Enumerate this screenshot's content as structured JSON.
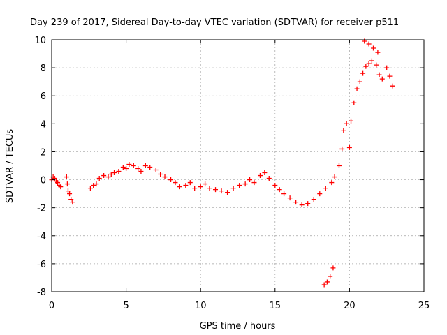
{
  "chart_data": {
    "type": "scatter",
    "title": "Day 239 of 2017, Sidereal Day-to-day VTEC variation (SDTVAR) for receiver p511",
    "xlabel": "GPS time / hours",
    "ylabel": "SDTVAR / TECUs",
    "xlim": [
      0,
      25
    ],
    "ylim": [
      -8,
      10
    ],
    "xticks": [
      0,
      5,
      10,
      15,
      20,
      25
    ],
    "yticks": [
      -8,
      -6,
      -4,
      -2,
      0,
      2,
      4,
      6,
      8,
      10
    ],
    "grid": true,
    "marker": "+",
    "color": "#ff0000",
    "series": [
      {
        "name": "SDTVAR",
        "points": [
          [
            0.0,
            0.0
          ],
          [
            0.1,
            0.2
          ],
          [
            0.2,
            0.1
          ],
          [
            0.3,
            -0.1
          ],
          [
            0.4,
            -0.2
          ],
          [
            0.5,
            -0.4
          ],
          [
            0.6,
            -0.5
          ],
          [
            1.0,
            0.2
          ],
          [
            1.05,
            -0.3
          ],
          [
            1.1,
            -0.8
          ],
          [
            1.2,
            -1.0
          ],
          [
            1.3,
            -1.4
          ],
          [
            1.4,
            -1.6
          ],
          [
            2.6,
            -0.6
          ],
          [
            2.8,
            -0.4
          ],
          [
            3.0,
            -0.3
          ],
          [
            3.2,
            0.1
          ],
          [
            3.5,
            0.3
          ],
          [
            3.8,
            0.2
          ],
          [
            4.0,
            0.4
          ],
          [
            4.2,
            0.5
          ],
          [
            4.5,
            0.6
          ],
          [
            4.8,
            0.9
          ],
          [
            5.0,
            0.8
          ],
          [
            5.2,
            1.1
          ],
          [
            5.5,
            1.0
          ],
          [
            5.8,
            0.8
          ],
          [
            6.0,
            0.6
          ],
          [
            6.3,
            1.0
          ],
          [
            6.6,
            0.9
          ],
          [
            7.0,
            0.7
          ],
          [
            7.3,
            0.4
          ],
          [
            7.6,
            0.2
          ],
          [
            8.0,
            0.0
          ],
          [
            8.3,
            -0.2
          ],
          [
            8.6,
            -0.5
          ],
          [
            9.0,
            -0.4
          ],
          [
            9.3,
            -0.2
          ],
          [
            9.6,
            -0.6
          ],
          [
            10.0,
            -0.5
          ],
          [
            10.3,
            -0.3
          ],
          [
            10.6,
            -0.6
          ],
          [
            11.0,
            -0.7
          ],
          [
            11.4,
            -0.8
          ],
          [
            11.8,
            -0.9
          ],
          [
            12.2,
            -0.6
          ],
          [
            12.6,
            -0.4
          ],
          [
            13.0,
            -0.3
          ],
          [
            13.3,
            0.0
          ],
          [
            13.6,
            -0.2
          ],
          [
            14.0,
            0.3
          ],
          [
            14.3,
            0.5
          ],
          [
            14.6,
            0.1
          ],
          [
            15.0,
            -0.4
          ],
          [
            15.3,
            -0.7
          ],
          [
            15.6,
            -1.0
          ],
          [
            16.0,
            -1.3
          ],
          [
            16.4,
            -1.6
          ],
          [
            16.8,
            -1.8
          ],
          [
            17.2,
            -1.7
          ],
          [
            17.6,
            -1.4
          ],
          [
            18.0,
            -1.0
          ],
          [
            18.4,
            -0.6
          ],
          [
            18.8,
            -0.2
          ],
          [
            19.0,
            0.2
          ],
          [
            19.3,
            1.0
          ],
          [
            19.5,
            2.2
          ],
          [
            19.6,
            3.5
          ],
          [
            19.8,
            4.0
          ],
          [
            20.0,
            2.3
          ],
          [
            20.1,
            4.2
          ],
          [
            20.3,
            5.5
          ],
          [
            20.5,
            6.5
          ],
          [
            20.7,
            7.0
          ],
          [
            20.9,
            7.6
          ],
          [
            21.1,
            8.1
          ],
          [
            21.3,
            8.3
          ],
          [
            21.5,
            8.5
          ],
          [
            21.8,
            8.2
          ],
          [
            22.0,
            7.5
          ],
          [
            22.2,
            7.2
          ],
          [
            22.5,
            8.0
          ],
          [
            22.7,
            7.4
          ],
          [
            22.9,
            6.7
          ],
          [
            21.0,
            9.9
          ],
          [
            21.3,
            9.7
          ],
          [
            21.6,
            9.4
          ],
          [
            21.9,
            9.1
          ],
          [
            18.3,
            -7.5
          ],
          [
            18.5,
            -7.3
          ],
          [
            18.7,
            -6.9
          ],
          [
            18.9,
            -6.3
          ]
        ]
      }
    ]
  }
}
